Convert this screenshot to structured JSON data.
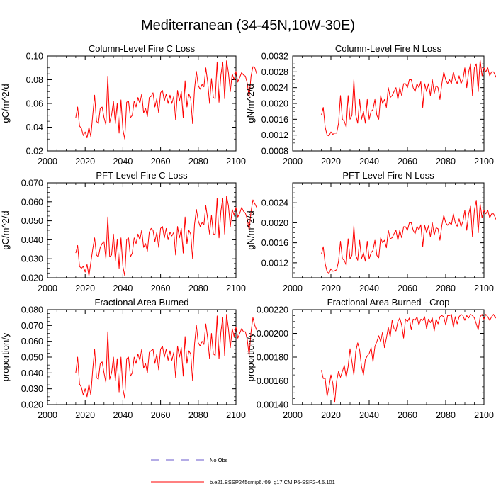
{
  "figure": {
    "title": "Mediterranean (34-45N,10W-30E)"
  },
  "legend": [
    {
      "label": "No Obs",
      "color": "#6a5acd",
      "dashed": true
    },
    {
      "label": "b.e21.BSSP245cmip6.f09_g17.CMIP6-SSP2-4.5.101",
      "color": "#ff0000",
      "dashed": false
    }
  ],
  "chart_data": [
    {
      "type": "line",
      "title": "Column-Level Fire C Loss",
      "ylabel": "gC/m^2/d",
      "xlim": [
        2000,
        2100
      ],
      "ylim": [
        0.02,
        0.1
      ],
      "xticks": [
        2000,
        2020,
        2040,
        2060,
        2080,
        2100
      ],
      "xtick_labels": [
        "2000",
        "2020",
        "2040",
        "2060",
        "2080",
        "2100"
      ],
      "yticks": [
        0.02,
        0.04,
        0.06,
        0.08,
        0.1
      ],
      "ytick_labels": [
        "0.02",
        "0.04",
        "0.06",
        "0.08",
        "0.10"
      ],
      "series": [
        {
          "color": "#ff0000",
          "x_start": 2015,
          "values": [
            0.048,
            0.057,
            0.041,
            0.039,
            0.033,
            0.036,
            0.031,
            0.04,
            0.032,
            0.05,
            0.067,
            0.045,
            0.043,
            0.056,
            0.057,
            0.048,
            0.042,
            0.083,
            0.044,
            0.05,
            0.062,
            0.043,
            0.06,
            0.035,
            0.063,
            0.038,
            0.03,
            0.061,
            0.062,
            0.048,
            0.05,
            0.062,
            0.057,
            0.065,
            0.06,
            0.068,
            0.052,
            0.056,
            0.049,
            0.065,
            0.066,
            0.069,
            0.057,
            0.064,
            0.052,
            0.069,
            0.071,
            0.062,
            0.068,
            0.06,
            0.067,
            0.06,
            0.066,
            0.046,
            0.071,
            0.062,
            0.07,
            0.048,
            0.079,
            0.057,
            0.068,
            0.064,
            0.043,
            0.072,
            0.087,
            0.075,
            0.072,
            0.076,
            0.074,
            0.09,
            0.078,
            0.06,
            0.081,
            0.065,
            0.064,
            0.095,
            0.061,
            0.084,
            0.095,
            0.064,
            0.096,
            0.086,
            0.07,
            0.085,
            0.08,
            0.087,
            0.078,
            0.082,
            0.086,
            0.084,
            0.083,
            0.077,
            0.065,
            0.083,
            0.091,
            0.09,
            0.085
          ]
        }
      ]
    },
    {
      "type": "line",
      "title": "Column-Level Fire N Loss",
      "ylabel": "gN/m^2/d",
      "xlim": [
        2000,
        2100
      ],
      "ylim": [
        0.0008,
        0.0032
      ],
      "xticks": [
        2000,
        2020,
        2040,
        2060,
        2080,
        2100
      ],
      "xtick_labels": [
        "2000",
        "2020",
        "2040",
        "2060",
        "2080",
        "2100"
      ],
      "yticks": [
        0.0008,
        0.0012,
        0.0016,
        0.002,
        0.0024,
        0.0028,
        0.0032
      ],
      "ytick_labels": [
        "0.0008",
        "0.0012",
        "0.0016",
        "0.0020",
        "0.0024",
        "0.0028",
        "0.0032"
      ],
      "series": [
        {
          "color": "#ff0000",
          "x_start": 2015,
          "values": [
            0.0017,
            0.0019,
            0.0014,
            0.0012,
            0.00118,
            0.00128,
            0.00122,
            0.00125,
            0.00125,
            0.0015,
            0.0022,
            0.0016,
            0.00155,
            0.0014,
            0.0022,
            0.0016,
            0.0017,
            0.0026,
            0.0017,
            0.0015,
            0.0021,
            0.0016,
            0.0018,
            0.0015,
            0.0021,
            0.0016,
            0.0018,
            0.00185,
            0.0021,
            0.0017,
            0.0016,
            0.0022,
            0.002,
            0.0021,
            0.0019,
            0.0024,
            0.00215,
            0.0022,
            0.0023,
            0.0024,
            0.0021,
            0.0024,
            0.0022,
            0.0025,
            0.0025,
            0.0024,
            0.0026,
            0.0026,
            0.0024,
            0.0023,
            0.0025,
            0.0024,
            0.00255,
            0.0019,
            0.0025,
            0.0023,
            0.0025,
            0.0022,
            0.0026,
            0.00225,
            0.00245,
            0.0024,
            0.0021,
            0.0025,
            0.0028,
            0.0026,
            0.0025,
            0.0026,
            0.0025,
            0.0028,
            0.0026,
            0.0025,
            0.0027,
            0.0025,
            0.0026,
            0.0029,
            0.0024,
            0.0028,
            0.003,
            0.0022,
            0.0029,
            0.003,
            0.0023,
            0.0031,
            0.0027,
            0.0029,
            0.0028,
            0.0029,
            0.0027,
            0.0028,
            0.0028,
            0.0027,
            0.0026,
            0.0029,
            0.003,
            0.0029,
            0.0028
          ]
        }
      ]
    },
    {
      "type": "line",
      "title": "PFT-Level Fire C Loss",
      "ylabel": "gC/m^2/d",
      "xlim": [
        2000,
        2100
      ],
      "ylim": [
        0.02,
        0.07
      ],
      "xticks": [
        2000,
        2020,
        2040,
        2060,
        2080,
        2100
      ],
      "xtick_labels": [
        "2000",
        "2020",
        "2040",
        "2060",
        "2080",
        "2100"
      ],
      "yticks": [
        0.02,
        0.03,
        0.04,
        0.05,
        0.06,
        0.07
      ],
      "ytick_labels": [
        "0.020",
        "0.030",
        "0.040",
        "0.050",
        "0.060",
        "0.070"
      ],
      "series": [
        {
          "color": "#ff0000",
          "x_start": 2015,
          "values": [
            0.033,
            0.037,
            0.026,
            0.025,
            0.026,
            0.023,
            0.027,
            0.021,
            0.028,
            0.035,
            0.041,
            0.032,
            0.031,
            0.036,
            0.038,
            0.039,
            0.03,
            0.052,
            0.031,
            0.032,
            0.043,
            0.029,
            0.04,
            0.025,
            0.041,
            0.026,
            0.021,
            0.04,
            0.041,
            0.031,
            0.033,
            0.041,
            0.038,
            0.043,
            0.04,
            0.045,
            0.036,
            0.038,
            0.034,
            0.044,
            0.046,
            0.045,
            0.039,
            0.044,
            0.036,
            0.046,
            0.047,
            0.041,
            0.046,
            0.04,
            0.044,
            0.042,
            0.044,
            0.032,
            0.047,
            0.041,
            0.046,
            0.033,
            0.052,
            0.038,
            0.045,
            0.043,
            0.03,
            0.048,
            0.056,
            0.05,
            0.047,
            0.049,
            0.048,
            0.058,
            0.051,
            0.043,
            0.053,
            0.043,
            0.043,
            0.062,
            0.041,
            0.055,
            0.062,
            0.043,
            0.063,
            0.058,
            0.047,
            0.056,
            0.053,
            0.057,
            0.052,
            0.054,
            0.057,
            0.055,
            0.054,
            0.051,
            0.045,
            0.055,
            0.061,
            0.059,
            0.057
          ]
        }
      ]
    },
    {
      "type": "line",
      "title": "PFT-Level Fire N Loss",
      "ylabel": "gN/m^2/d",
      "xlim": [
        2000,
        2100
      ],
      "ylim": [
        0.0009,
        0.0028
      ],
      "xticks": [
        2000,
        2020,
        2040,
        2060,
        2080,
        2100
      ],
      "xtick_labels": [
        "2000",
        "2020",
        "2040",
        "2060",
        "2080",
        "2100"
      ],
      "yticks": [
        0.0012,
        0.0016,
        0.002,
        0.0024
      ],
      "ytick_labels": [
        "0.0012",
        "0.0016",
        "0.0020",
        "0.0024"
      ],
      "series": [
        {
          "color": "#ff0000",
          "x_start": 2015,
          "values": [
            0.00137,
            0.00152,
            0.00118,
            0.00102,
            0.00099,
            0.00108,
            0.00103,
            0.00104,
            0.00106,
            0.00123,
            0.00163,
            0.00128,
            0.00125,
            0.00115,
            0.00168,
            0.00128,
            0.00135,
            0.00194,
            0.00135,
            0.00125,
            0.00165,
            0.00128,
            0.0014,
            0.00123,
            0.00163,
            0.00128,
            0.0014,
            0.00145,
            0.00165,
            0.00135,
            0.0013,
            0.0017,
            0.0016,
            0.00165,
            0.0015,
            0.00185,
            0.00168,
            0.0017,
            0.00178,
            0.00185,
            0.00165,
            0.00185,
            0.0017,
            0.00192,
            0.00192,
            0.00185,
            0.002,
            0.002,
            0.00185,
            0.00178,
            0.00193,
            0.00186,
            0.00196,
            0.00152,
            0.00195,
            0.0018,
            0.00194,
            0.00172,
            0.002,
            0.00175,
            0.0019,
            0.00188,
            0.00165,
            0.00195,
            0.00215,
            0.002,
            0.00195,
            0.002,
            0.00196,
            0.00218,
            0.002,
            0.00193,
            0.00208,
            0.00192,
            0.00203,
            0.00225,
            0.00185,
            0.00218,
            0.00233,
            0.00172,
            0.00225,
            0.00245,
            0.0018,
            0.00238,
            0.0021,
            0.00225,
            0.00218,
            0.00225,
            0.0021,
            0.00218,
            0.00218,
            0.0021,
            0.002,
            0.00225,
            0.00235,
            0.00225,
            0.00218
          ]
        }
      ]
    },
    {
      "type": "line",
      "title": "Fractional Area Burned",
      "ylabel": "proportion/y",
      "xlim": [
        2000,
        2100
      ],
      "ylim": [
        0.02,
        0.08
      ],
      "xticks": [
        2000,
        2020,
        2040,
        2060,
        2080,
        2100
      ],
      "xtick_labels": [
        "2000",
        "2020",
        "2040",
        "2060",
        "2080",
        "2100"
      ],
      "yticks": [
        0.02,
        0.03,
        0.04,
        0.05,
        0.06,
        0.07,
        0.08
      ],
      "ytick_labels": [
        "0.020",
        "0.030",
        "0.040",
        "0.050",
        "0.060",
        "0.070",
        "0.080"
      ],
      "series": [
        {
          "color": "#ff0000",
          "x_start": 2015,
          "values": [
            0.04,
            0.05,
            0.033,
            0.031,
            0.026,
            0.03,
            0.025,
            0.033,
            0.026,
            0.042,
            0.055,
            0.037,
            0.036,
            0.046,
            0.047,
            0.04,
            0.034,
            0.066,
            0.036,
            0.04,
            0.05,
            0.035,
            0.049,
            0.028,
            0.05,
            0.03,
            0.024,
            0.049,
            0.05,
            0.038,
            0.04,
            0.05,
            0.046,
            0.052,
            0.048,
            0.055,
            0.043,
            0.046,
            0.04,
            0.053,
            0.054,
            0.055,
            0.046,
            0.052,
            0.042,
            0.055,
            0.057,
            0.05,
            0.055,
            0.048,
            0.054,
            0.048,
            0.053,
            0.037,
            0.057,
            0.05,
            0.056,
            0.038,
            0.063,
            0.046,
            0.054,
            0.052,
            0.035,
            0.058,
            0.07,
            0.059,
            0.057,
            0.06,
            0.058,
            0.071,
            0.062,
            0.049,
            0.065,
            0.052,
            0.051,
            0.076,
            0.049,
            0.066,
            0.075,
            0.051,
            0.077,
            0.068,
            0.056,
            0.068,
            0.063,
            0.069,
            0.062,
            0.065,
            0.068,
            0.066,
            0.066,
            0.061,
            0.051,
            0.066,
            0.075,
            0.07,
            0.067
          ]
        }
      ]
    },
    {
      "type": "line",
      "title": "Fractional Area Burned - Crop",
      "ylabel": "proportion/y",
      "xlim": [
        2000,
        2100
      ],
      "ylim": [
        0.0014,
        0.0022
      ],
      "xticks": [
        2000,
        2020,
        2040,
        2060,
        2080,
        2100
      ],
      "xtick_labels": [
        "2000",
        "2020",
        "2040",
        "2060",
        "2080",
        "2100"
      ],
      "yticks": [
        0.0014,
        0.0016,
        0.0018,
        0.002,
        0.0022
      ],
      "ytick_labels": [
        "0.00140",
        "0.00160",
        "0.00180",
        "0.00200",
        "0.00220"
      ],
      "series": [
        {
          "color": "#ff0000",
          "x_start": 2015,
          "values": [
            0.00169,
            0.00162,
            0.00162,
            0.00147,
            0.00155,
            0.00165,
            0.00158,
            0.00142,
            0.0016,
            0.00168,
            0.00163,
            0.00168,
            0.00173,
            0.00163,
            0.00172,
            0.00187,
            0.00176,
            0.00165,
            0.00185,
            0.00192,
            0.00186,
            0.00172,
            0.00165,
            0.00178,
            0.00181,
            0.00183,
            0.00188,
            0.00176,
            0.00189,
            0.00193,
            0.00198,
            0.00193,
            0.00201,
            0.00188,
            0.00196,
            0.00205,
            0.00197,
            0.00211,
            0.00204,
            0.00202,
            0.0021,
            0.00213,
            0.00207,
            0.00196,
            0.00212,
            0.0021,
            0.00213,
            0.00203,
            0.00212,
            0.00211,
            0.00214,
            0.00207,
            0.00212,
            0.00211,
            0.00214,
            0.00204,
            0.00212,
            0.00209,
            0.00213,
            0.00202,
            0.00212,
            0.00208,
            0.00214,
            0.00215,
            0.00214,
            0.00207,
            0.00215,
            0.00215,
            0.00216,
            0.00205,
            0.00214,
            0.00208,
            0.00214,
            0.00216,
            0.00215,
            0.00211,
            0.00215,
            0.00213,
            0.00216,
            0.00215,
            0.00213,
            0.00208,
            0.00203,
            0.00214,
            0.00216,
            0.00212,
            0.00216,
            0.00214,
            0.00211,
            0.00214,
            0.00216,
            0.00213,
            0.00216,
            0.00207,
            0.00215,
            0.00217,
            0.00216
          ]
        }
      ]
    }
  ]
}
